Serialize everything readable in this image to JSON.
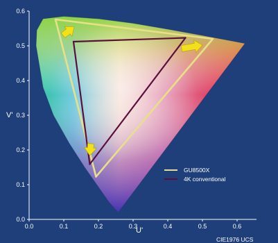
{
  "chart_data": {
    "type": "scatter",
    "title": "",
    "xlabel": "U'",
    "ylabel": "V'",
    "xlim": [
      0.0,
      0.65
    ],
    "ylim": [
      0.0,
      0.6
    ],
    "xticks": [
      0.0,
      0.1,
      0.2,
      0.3,
      0.4,
      0.5,
      0.6
    ],
    "yticks": [
      0.0,
      0.1,
      0.2,
      0.3,
      0.4,
      0.5,
      0.6
    ],
    "xtick_labels": [
      "0.0",
      "0.1",
      "0.2",
      "0.3",
      "0.4",
      "0.5",
      "0.6"
    ],
    "ytick_labels": [
      "0.0",
      "0.1",
      "0.2",
      "0.3",
      "0.4",
      "0.5",
      "0.6"
    ],
    "annotation": "CIE1976 UCS",
    "gamut_locus": {
      "u": [
        0.257,
        0.23,
        0.195,
        0.16,
        0.115,
        0.07,
        0.04,
        0.03,
        0.02,
        0.022,
        0.04,
        0.1,
        0.2,
        0.3,
        0.4,
        0.5,
        0.623
      ],
      "v": [
        0.02,
        0.05,
        0.1,
        0.15,
        0.22,
        0.3,
        0.38,
        0.44,
        0.5,
        0.545,
        0.578,
        0.585,
        0.578,
        0.565,
        0.548,
        0.53,
        0.507
      ]
    },
    "series": [
      {
        "name": "GU8500X",
        "color": "#e8df8a",
        "u": [
          0.076,
          0.53,
          0.193
        ],
        "v": [
          0.576,
          0.52,
          0.123
        ]
      },
      {
        "name": "4K conventional",
        "color": "#5a0f3c",
        "u": [
          0.128,
          0.451,
          0.175
        ],
        "v": [
          0.512,
          0.523,
          0.159
        ]
      }
    ],
    "arrows": [
      {
        "from_u": 0.098,
        "from_v": 0.53,
        "to_u": 0.13,
        "to_v": 0.555
      },
      {
        "from_u": 0.44,
        "from_v": 0.492,
        "to_u": 0.5,
        "to_v": 0.502
      },
      {
        "from_u": 0.178,
        "from_v": 0.218,
        "to_u": 0.175,
        "to_v": 0.184
      }
    ],
    "legend_position": "bottom-right"
  }
}
